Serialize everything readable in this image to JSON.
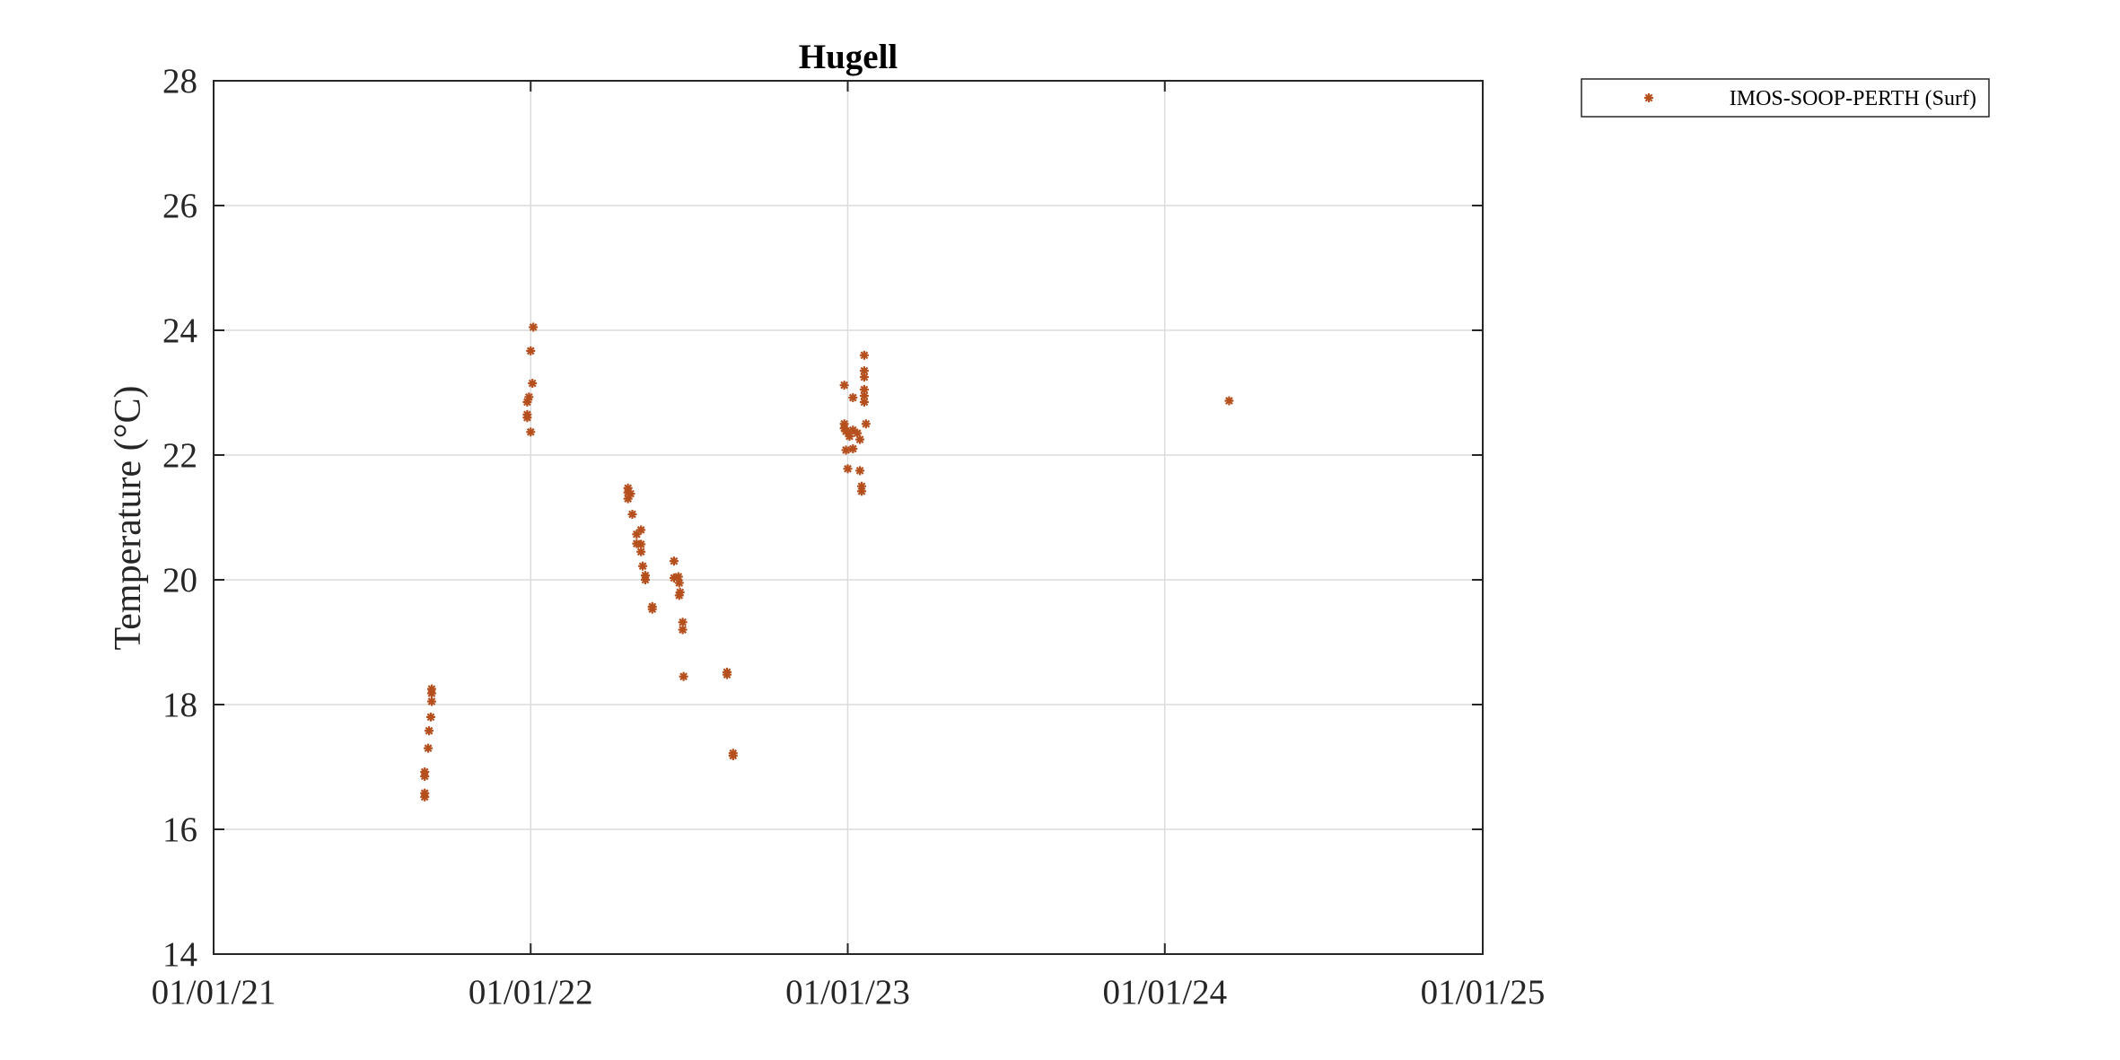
{
  "chart_data": {
    "type": "scatter",
    "title": "Hugell",
    "xlabel": "",
    "ylabel": "Temperature (°C)",
    "x_tick_labels": [
      "01/01/21",
      "01/01/22",
      "01/01/23",
      "01/01/24",
      "01/01/25"
    ],
    "x_ticks": [
      "2021-01-01",
      "2022-01-01",
      "2023-01-01",
      "2024-01-01",
      "2025-01-01"
    ],
    "xlim": [
      "2021-01-01",
      "2025-01-01"
    ],
    "y_tick_labels": [
      "14",
      "16",
      "18",
      "20",
      "22",
      "24",
      "26",
      "28"
    ],
    "y_ticks": [
      14,
      16,
      18,
      20,
      22,
      24,
      26,
      28
    ],
    "ylim": [
      14,
      28
    ],
    "grid": true,
    "legend": {
      "placement": "outside-top-right",
      "entries": [
        "IMOS-SOOP-PERTH (Surf)"
      ]
    },
    "series": [
      {
        "name": "IMOS-SOOP-PERTH (Surf)",
        "color": "#b5501e",
        "marker": "asterisk",
        "points": [
          [
            "2021-09-01",
            16.52
          ],
          [
            "2021-09-01",
            16.58
          ],
          [
            "2021-09-01",
            16.85
          ],
          [
            "2021-09-01",
            16.92
          ],
          [
            "2021-09-05",
            17.3
          ],
          [
            "2021-09-06",
            17.58
          ],
          [
            "2021-09-08",
            17.8
          ],
          [
            "2021-09-09",
            18.05
          ],
          [
            "2021-09-09",
            18.18
          ],
          [
            "2021-09-09",
            18.25
          ],
          [
            "2021-12-28",
            22.6
          ],
          [
            "2021-12-28",
            22.65
          ],
          [
            "2021-12-28",
            22.85
          ],
          [
            "2021-12-30",
            22.93
          ],
          [
            "2022-01-01",
            22.37
          ],
          [
            "2022-01-01",
            23.67
          ],
          [
            "2022-01-03",
            23.15
          ],
          [
            "2022-01-04",
            24.05
          ],
          [
            "2022-04-23",
            21.3
          ],
          [
            "2022-04-23",
            21.4
          ],
          [
            "2022-04-23",
            21.47
          ],
          [
            "2022-04-26",
            21.38
          ],
          [
            "2022-04-28",
            21.05
          ],
          [
            "2022-05-03",
            20.73
          ],
          [
            "2022-05-03",
            20.58
          ],
          [
            "2022-05-08",
            20.8
          ],
          [
            "2022-05-08",
            20.57
          ],
          [
            "2022-05-08",
            20.45
          ],
          [
            "2022-05-10",
            20.22
          ],
          [
            "2022-05-13",
            20.07
          ],
          [
            "2022-05-13",
            20.0
          ],
          [
            "2022-05-21",
            19.57
          ],
          [
            "2022-05-21",
            19.53
          ],
          [
            "2022-06-15",
            20.3
          ],
          [
            "2022-06-15",
            20.03
          ],
          [
            "2022-06-20",
            20.05
          ],
          [
            "2022-06-21",
            19.95
          ],
          [
            "2022-06-21",
            19.75
          ],
          [
            "2022-06-22",
            19.8
          ],
          [
            "2022-06-25",
            19.32
          ],
          [
            "2022-06-25",
            19.2
          ],
          [
            "2022-06-26",
            18.45
          ],
          [
            "2022-08-15",
            18.52
          ],
          [
            "2022-08-15",
            18.48
          ],
          [
            "2022-08-22",
            17.22
          ],
          [
            "2022-08-22",
            17.18
          ],
          [
            "2022-12-28",
            23.12
          ],
          [
            "2022-12-28",
            22.5
          ],
          [
            "2022-12-28",
            22.43
          ],
          [
            "2022-12-30",
            22.38
          ],
          [
            "2022-12-30",
            22.08
          ],
          [
            "2023-01-01",
            21.78
          ],
          [
            "2023-01-03",
            22.3
          ],
          [
            "2023-01-07",
            22.92
          ],
          [
            "2023-01-07",
            22.4
          ],
          [
            "2023-01-07",
            22.1
          ],
          [
            "2023-01-12",
            22.35
          ],
          [
            "2023-01-15",
            22.25
          ],
          [
            "2023-01-15",
            21.75
          ],
          [
            "2023-01-17",
            21.5
          ],
          [
            "2023-01-17",
            21.42
          ],
          [
            "2023-01-20",
            23.6
          ],
          [
            "2023-01-20",
            23.35
          ],
          [
            "2023-01-20",
            23.25
          ],
          [
            "2023-01-20",
            23.05
          ],
          [
            "2023-01-20",
            22.95
          ],
          [
            "2023-01-20",
            22.85
          ],
          [
            "2023-01-22",
            22.5
          ],
          [
            "2024-03-15",
            22.87
          ]
        ]
      }
    ]
  }
}
